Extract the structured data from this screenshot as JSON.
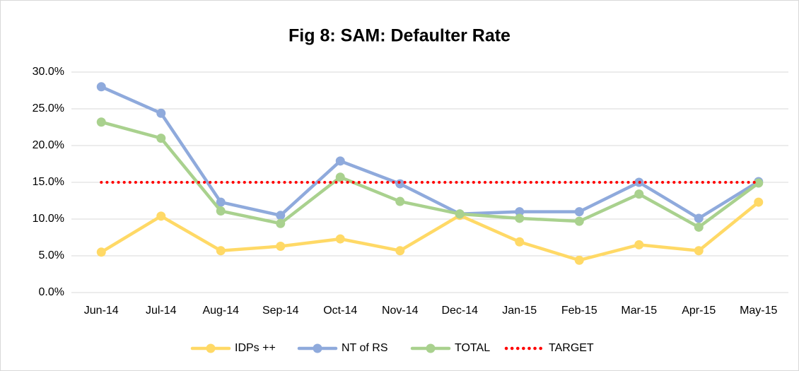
{
  "chart_data": {
    "type": "line",
    "title": "Fig 8: SAM: Defaulter Rate",
    "categories": [
      "Jun-14",
      "Jul-14",
      "Aug-14",
      "Sep-14",
      "Oct-14",
      "Nov-14",
      "Dec-14",
      "Jan-15",
      "Feb-15",
      "Mar-15",
      "Apr-15",
      "May-15"
    ],
    "series": [
      {
        "name": "IDPs ++",
        "color": "#ffd966",
        "markers": true,
        "values": [
          5.5,
          10.4,
          5.7,
          6.3,
          7.3,
          5.7,
          10.5,
          6.9,
          4.4,
          6.5,
          5.7,
          12.3
        ]
      },
      {
        "name": "NT of RS",
        "color": "#8faadc",
        "markers": true,
        "values": [
          28.0,
          24.4,
          12.3,
          10.5,
          17.9,
          14.8,
          10.7,
          11.0,
          11.0,
          15.0,
          10.1,
          15.1
        ]
      },
      {
        "name": "TOTAL",
        "color": "#a9d18e",
        "markers": true,
        "values": [
          23.2,
          21.0,
          11.1,
          9.4,
          15.7,
          12.4,
          10.7,
          10.1,
          9.7,
          13.4,
          8.9,
          14.9
        ]
      },
      {
        "name": "TARGET",
        "color": "#ff0000",
        "markers": false,
        "line_style": "dotted",
        "values": [
          15,
          15,
          15,
          15,
          15,
          15,
          15,
          15,
          15,
          15,
          15,
          15
        ]
      }
    ],
    "ylim": [
      0,
      30
    ],
    "yticks": [
      {
        "value": 0,
        "label": "0.0%"
      },
      {
        "value": 5,
        "label": "5.0%"
      },
      {
        "value": 10,
        "label": "10.0%"
      },
      {
        "value": 15,
        "label": "15.0%"
      },
      {
        "value": 20,
        "label": "20.0%"
      },
      {
        "value": 25,
        "label": "25.0%"
      },
      {
        "value": 30,
        "label": "30.0%"
      }
    ],
    "grid": true,
    "legend": "bottom"
  }
}
